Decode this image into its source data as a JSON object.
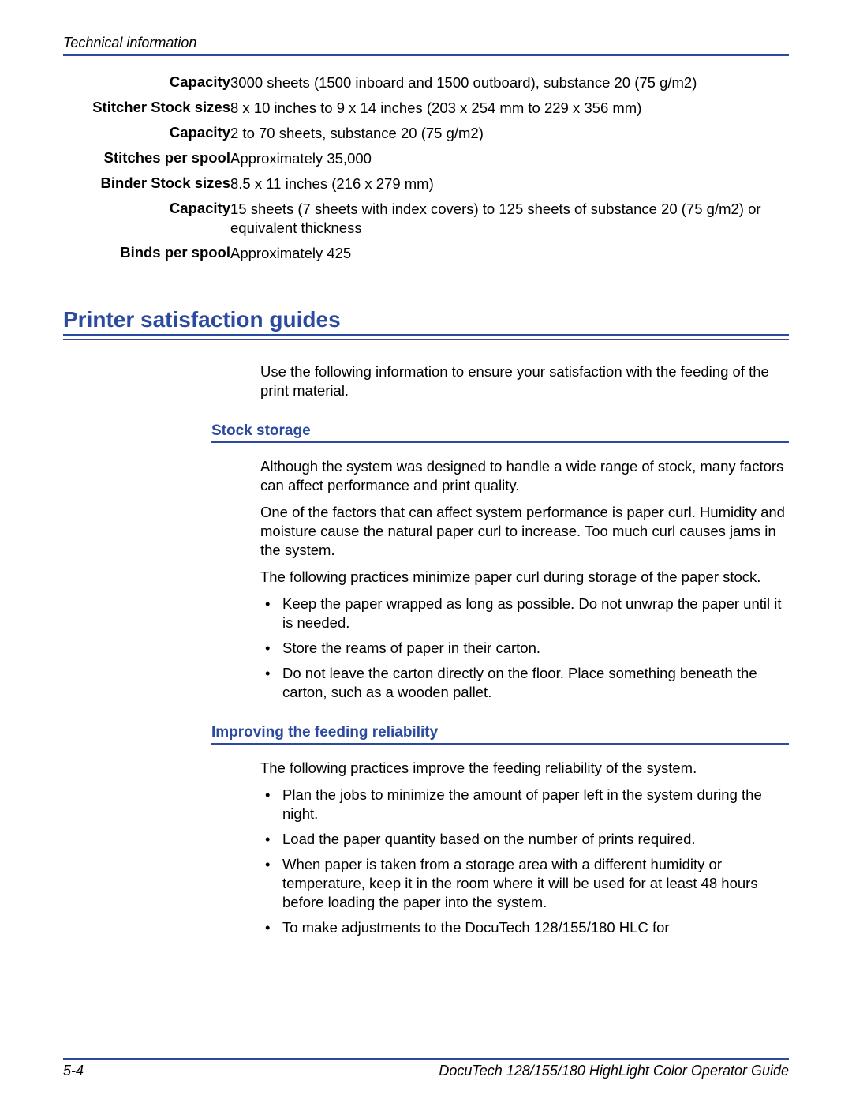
{
  "header": {
    "section_title": "Technical information"
  },
  "specs": [
    {
      "label": "Capacity",
      "value": "3000 sheets (1500 inboard and 1500 outboard), substance 20 (75 g/m2)"
    },
    {
      "label": "Stitcher Stock sizes",
      "value": "8 x 10 inches to 9 x 14 inches (203 x 254 mm to 229 x 356 mm)"
    },
    {
      "label": "Capacity",
      "value": "2 to 70 sheets, substance 20 (75 g/m2)"
    },
    {
      "label": "Stitches per spool",
      "value": "Approximately 35,000"
    },
    {
      "label": "Binder Stock sizes",
      "value": "8.5 x 11 inches (216 x 279 mm)"
    },
    {
      "label": "Capacity",
      "value": "15 sheets (7 sheets with index covers) to 125 sheets of substance 20 (75 g/m2) or equivalent thickness"
    },
    {
      "label": "Binds per spool",
      "value": "Approximately 425"
    }
  ],
  "section": {
    "title": "Printer satisfaction guides",
    "intro": "Use the following information to ensure your satisfaction with the feeding of the print material."
  },
  "stock_storage": {
    "title": "Stock storage",
    "p1": "Although the system was designed to handle a wide range of stock, many factors can affect performance and print quality.",
    "p2": "One of the factors that can affect system performance is paper curl. Humidity and moisture cause the natural paper curl to increase. Too much curl causes jams in the system.",
    "p3": "The following practices minimize paper curl during storage of the paper stock.",
    "bullets": [
      "Keep the paper wrapped as long as possible. Do not unwrap the paper until it is needed.",
      "Store the reams of paper in their carton.",
      "Do not leave the carton directly on the floor. Place something beneath the carton, such as a wooden pallet."
    ]
  },
  "feeding": {
    "title": "Improving the feeding reliability",
    "p1": "The following practices improve the feeding reliability of the system.",
    "bullets": [
      "Plan the jobs to minimize the amount of paper left in the system during the night.",
      "Load the paper quantity based on the number of prints required.",
      "When paper is taken from a storage area with a different humidity or temperature, keep it in the room where it will be used for at least 48 hours before loading the paper into the system.",
      "To make adjustments to the DocuTech 128/155/180 HLC for"
    ]
  },
  "footer": {
    "page": "5-4",
    "doc_title": "DocuTech 128/155/180 HighLight Color Operator Guide"
  },
  "colors": {
    "accent": "#2b4aa0",
    "text": "#000000",
    "background": "#ffffff"
  }
}
